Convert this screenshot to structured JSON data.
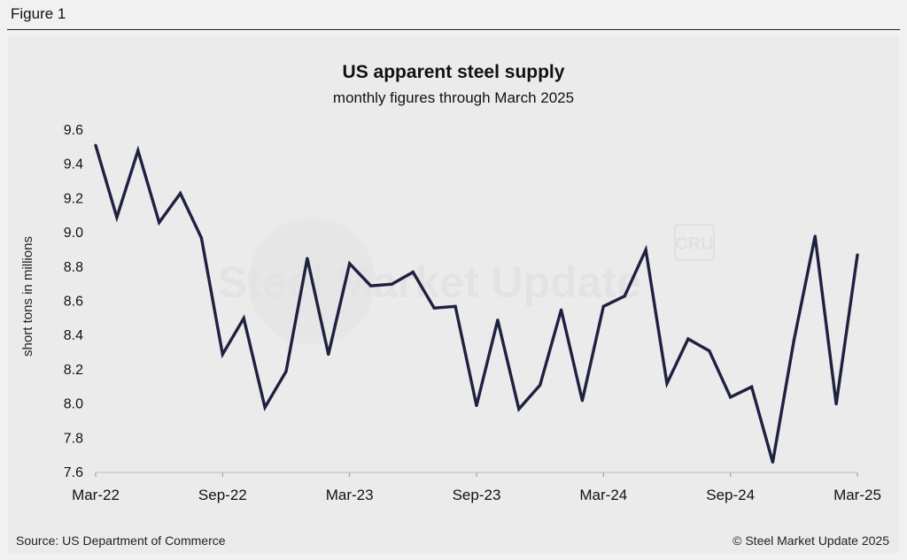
{
  "figure_label": "Figure 1",
  "source": "Source: US Department of Commerce",
  "copyright": "© Steel Market Update 2025",
  "watermark": "Steel Market Update",
  "watermark_logo": "CRU",
  "colors": {
    "line": "#1e2140",
    "background": "#ebebeb",
    "page": "#f1f1f1"
  },
  "chart_data": {
    "type": "line",
    "title": "US apparent steel supply",
    "subtitle": "monthly figures through March 2025",
    "xlabel": "",
    "ylabel": "short tons in millions",
    "ylim": [
      7.6,
      9.6
    ],
    "yticks": [
      "9.6",
      "9.4",
      "9.2",
      "9.0",
      "8.8",
      "8.6",
      "8.4",
      "8.2",
      "8.0",
      "7.8",
      "7.6"
    ],
    "x_tick_labels": [
      {
        "index": 0,
        "label": "Mar-22"
      },
      {
        "index": 6,
        "label": "Sep-22"
      },
      {
        "index": 12,
        "label": "Mar-23"
      },
      {
        "index": 18,
        "label": "Sep-23"
      },
      {
        "index": 24,
        "label": "Mar-24"
      },
      {
        "index": 30,
        "label": "Sep-24"
      },
      {
        "index": 36,
        "label": "Mar-25"
      }
    ],
    "categories": [
      "Mar-22",
      "Apr-22",
      "May-22",
      "Jun-22",
      "Jul-22",
      "Aug-22",
      "Sep-22",
      "Oct-22",
      "Nov-22",
      "Dec-22",
      "Jan-23",
      "Feb-23",
      "Mar-23",
      "Apr-23",
      "May-23",
      "Jun-23",
      "Jul-23",
      "Aug-23",
      "Sep-23",
      "Oct-23",
      "Nov-23",
      "Dec-23",
      "Jan-24",
      "Feb-24",
      "Mar-24",
      "Apr-24",
      "May-24",
      "Jun-24",
      "Jul-24",
      "Aug-24",
      "Sep-24",
      "Oct-24",
      "Nov-24",
      "Dec-24",
      "Jan-25",
      "Feb-25",
      "Mar-25"
    ],
    "series": [
      {
        "name": "US apparent steel supply",
        "values": [
          9.51,
          9.09,
          9.48,
          9.06,
          9.23,
          8.97,
          8.29,
          8.5,
          7.98,
          8.19,
          8.85,
          8.29,
          8.82,
          8.69,
          8.7,
          8.77,
          8.56,
          8.57,
          7.99,
          8.49,
          7.97,
          8.11,
          8.55,
          8.02,
          8.57,
          8.63,
          8.9,
          8.12,
          8.38,
          8.31,
          8.04,
          8.1,
          7.66,
          8.37,
          8.98,
          8.0,
          8.87
        ]
      }
    ]
  }
}
